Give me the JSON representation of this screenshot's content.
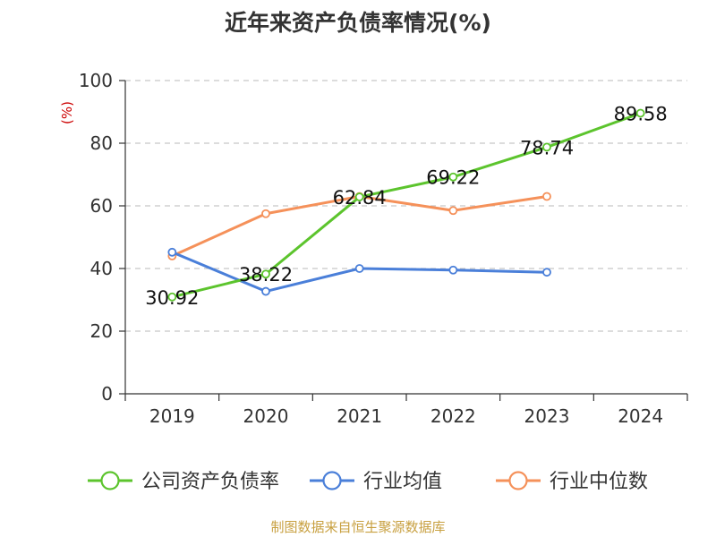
{
  "chart_data": {
    "type": "line",
    "title": "近年来资产负债率情况(%)",
    "ylabel": "(%)",
    "xlabel": "",
    "ylim": [
      0,
      100
    ],
    "yticks": [
      0,
      20,
      40,
      60,
      80,
      100
    ],
    "grid": true,
    "legend_position": "bottom",
    "categories": [
      "2019",
      "2020",
      "2021",
      "2022",
      "2023",
      "2024"
    ],
    "series": [
      {
        "name": "公司资产负债率",
        "color": "#5cc42d",
        "values": [
          30.92,
          38.22,
          62.84,
          69.22,
          78.74,
          89.58
        ],
        "labels": [
          "30.92",
          "38.22",
          "62.84",
          "69.22",
          "78.74",
          "89.58"
        ]
      },
      {
        "name": "行业均值",
        "color": "#4a7fd9",
        "values": [
          45.2,
          32.7,
          40.0,
          39.5,
          38.8,
          null
        ],
        "labels": []
      },
      {
        "name": "行业中位数",
        "color": "#f5915a",
        "values": [
          44.0,
          57.5,
          63.0,
          58.5,
          63.0,
          null
        ],
        "labels": []
      }
    ],
    "source": "制图数据来自恒生聚源数据库"
  }
}
